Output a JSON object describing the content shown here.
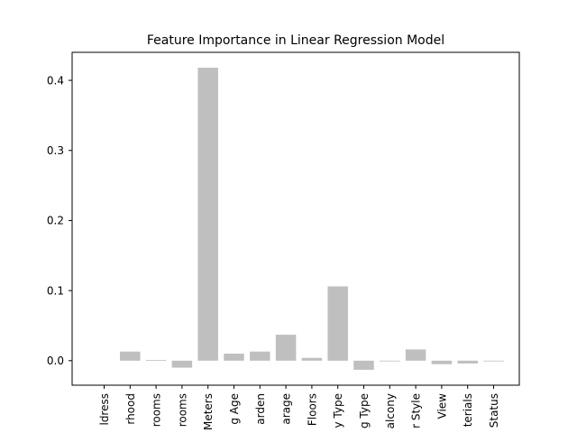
{
  "chart_data": {
    "type": "bar",
    "title": "Feature Importance in Linear Regression Model",
    "xlabel": "",
    "ylabel": "",
    "ylim": [
      -0.035,
      0.44
    ],
    "yticks": [
      "0.0",
      "0.1",
      "0.2",
      "0.3",
      "0.4"
    ],
    "ytick_values": [
      0.0,
      0.1,
      0.2,
      0.3,
      0.4
    ],
    "categories": [
      "ldress",
      "rhood",
      "rooms",
      "rooms",
      "Meters",
      "g Age",
      "arden",
      "arage",
      "Floors",
      "y Type",
      "g Type",
      "alcony",
      "r Style",
      "View",
      "terials",
      "Status"
    ],
    "values": [
      0.0,
      0.013,
      0.001,
      -0.01,
      0.418,
      0.01,
      0.013,
      0.037,
      0.004,
      0.106,
      -0.013,
      -0.001,
      0.016,
      -0.005,
      -0.004,
      -0.001
    ],
    "bar_color": "#bfbfbf",
    "grid": false,
    "legend": "none"
  }
}
